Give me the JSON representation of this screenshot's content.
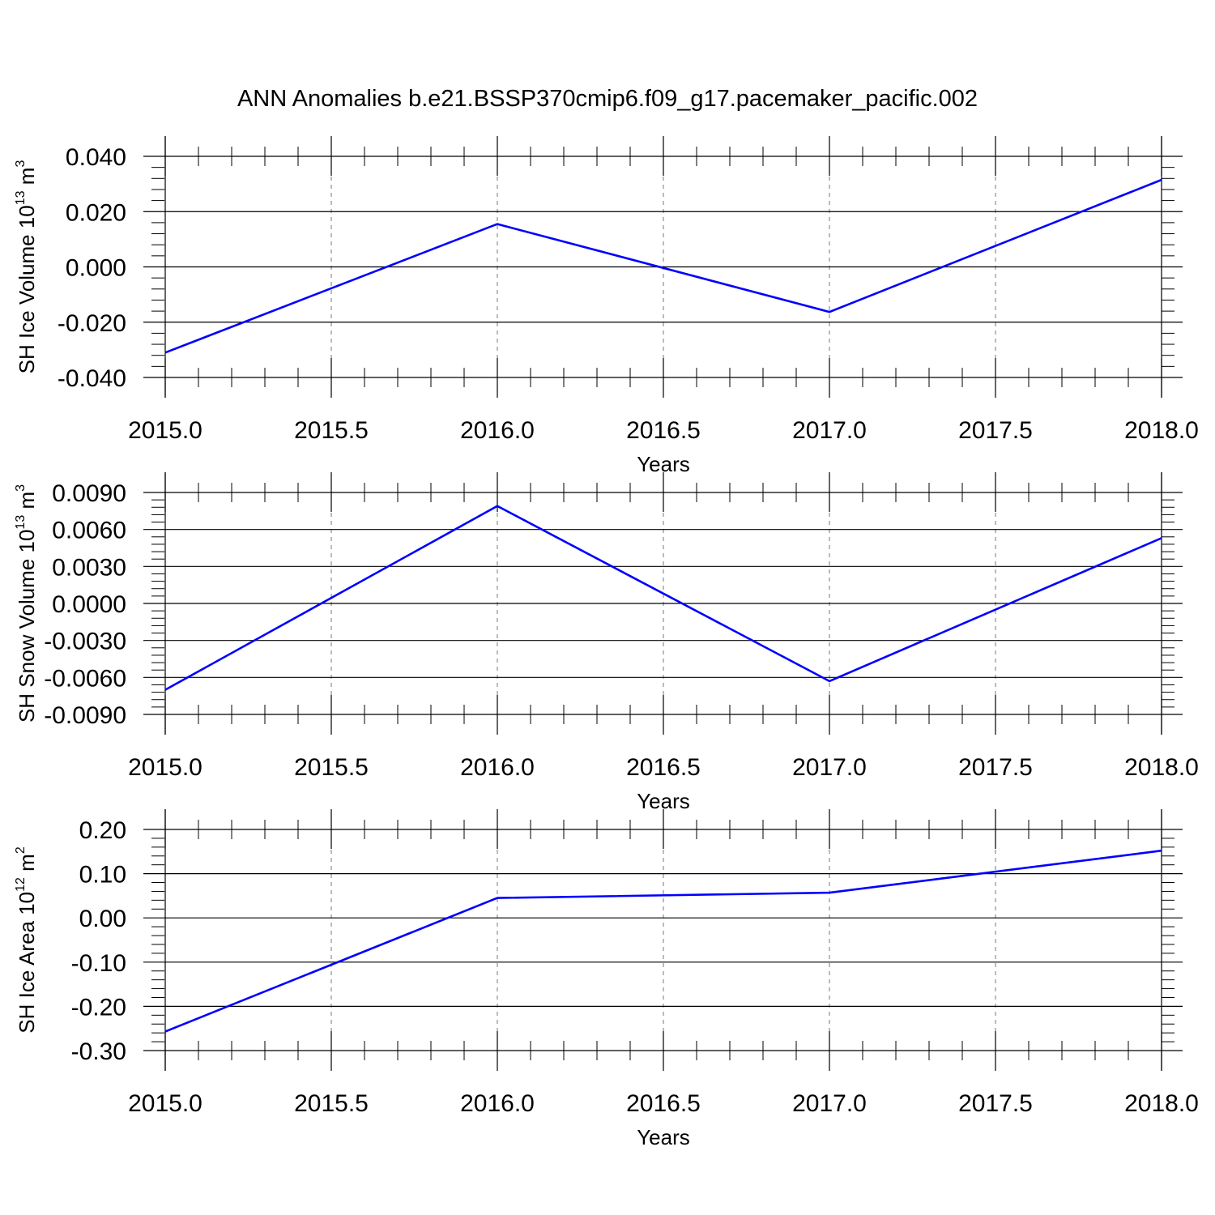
{
  "title": "ANN Anomalies b.e21.BSSP370cmip6.f09_g17.pacemaker_pacific.002",
  "colors": {
    "line": "#0000ff",
    "axis": "#000000",
    "grid": "#777777"
  },
  "chart_data": [
    {
      "type": "line",
      "xlabel": "Years",
      "ylabel": {
        "main": "SH Ice Volume 10",
        "exp1": "13",
        "mid": " m",
        "exp2": "3"
      },
      "x": [
        2015.0,
        2016.0,
        2017.0,
        2018.0
      ],
      "series": [
        {
          "values": [
            -0.031,
            0.0155,
            -0.0163,
            0.0315
          ]
        }
      ],
      "xlim": [
        2015.0,
        2018.0
      ],
      "ylim": [
        -0.04,
        0.04
      ],
      "xticks": [
        2015.0,
        2015.5,
        2016.0,
        2016.5,
        2017.0,
        2017.5,
        2018.0
      ],
      "xtick_labels": [
        "2015.0",
        "2015.5",
        "2016.0",
        "2016.5",
        "2017.0",
        "2017.5",
        "2018.0"
      ],
      "yticks": [
        -0.04,
        -0.02,
        0.0,
        0.02,
        0.04
      ],
      "ytick_labels": [
        "-0.040",
        "-0.020",
        "0.000",
        "0.020",
        "0.040"
      ],
      "grid": "vertical dashed"
    },
    {
      "type": "line",
      "xlabel": "Years",
      "ylabel": {
        "main": "SH Snow Volume 10",
        "exp1": "13",
        "mid": " m",
        "exp2": "3"
      },
      "x": [
        2015.0,
        2016.0,
        2017.0,
        2018.0
      ],
      "series": [
        {
          "values": [
            -0.007,
            0.0079,
            -0.0063,
            0.0053
          ]
        }
      ],
      "xlim": [
        2015.0,
        2018.0
      ],
      "ylim": [
        -0.009,
        0.009
      ],
      "xticks": [
        2015.0,
        2015.5,
        2016.0,
        2016.5,
        2017.0,
        2017.5,
        2018.0
      ],
      "xtick_labels": [
        "2015.0",
        "2015.5",
        "2016.0",
        "2016.5",
        "2017.0",
        "2017.5",
        "2018.0"
      ],
      "yticks": [
        -0.009,
        -0.006,
        -0.003,
        0.0,
        0.003,
        0.006,
        0.009
      ],
      "ytick_labels": [
        "-0.0090",
        "-0.0060",
        "-0.0030",
        "0.0000",
        "0.0030",
        "0.0060",
        "0.0090"
      ],
      "grid": "vertical dashed"
    },
    {
      "type": "line",
      "xlabel": "Years",
      "ylabel": {
        "main": "SH Ice Area 10",
        "exp1": "12",
        "mid": " m",
        "exp2": "2"
      },
      "x": [
        2015.0,
        2016.0,
        2017.0,
        2018.0
      ],
      "series": [
        {
          "values": [
            -0.257,
            0.045,
            0.057,
            0.152
          ]
        }
      ],
      "xlim": [
        2015.0,
        2018.0
      ],
      "ylim": [
        -0.3,
        0.2
      ],
      "xticks": [
        2015.0,
        2015.5,
        2016.0,
        2016.5,
        2017.0,
        2017.5,
        2018.0
      ],
      "xtick_labels": [
        "2015.0",
        "2015.5",
        "2016.0",
        "2016.5",
        "2017.0",
        "2017.5",
        "2018.0"
      ],
      "yticks": [
        -0.3,
        -0.2,
        -0.1,
        0.0,
        0.1,
        0.2
      ],
      "ytick_labels": [
        "-0.30",
        "-0.20",
        "-0.10",
        "0.00",
        "0.10",
        "0.20"
      ],
      "grid": "vertical dashed"
    }
  ]
}
